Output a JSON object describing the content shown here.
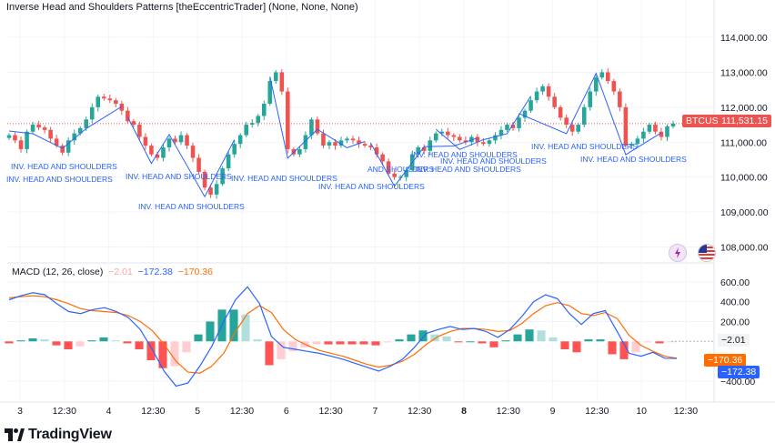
{
  "header": {
    "title": "Inverse Head and Shoulders Patterns [theEccentricTrader] (None, None, None)"
  },
  "macd_header": {
    "label": "MACD (12, 26, close)",
    "hist": "−2.01",
    "macd": "−172.38",
    "signal": "−170.36"
  },
  "badges": {
    "symbol": "BTCUSD",
    "price": "111,531.15",
    "hist": "−2.01",
    "signal": "−170.36",
    "macd": "−172.38"
  },
  "brand": {
    "name": "TradingView"
  },
  "icons": [
    "lightning-icon",
    "us-flag-icon",
    "tradingview-logo-icon"
  ],
  "colors": {
    "up": "#26a69a",
    "down": "#ef5350",
    "macd": "#2962ff",
    "signal": "#ff6d00",
    "hist_up_strong": "#26a69a",
    "hist_up_weak": "#b2dfdb",
    "hist_down_strong": "#ff5252",
    "hist_down_weak": "#ffcdd2",
    "pattern": "#2962ff",
    "price_line": "#ef5350"
  },
  "chart_data": [
    {
      "type": "candlestick",
      "title": "Inverse Head and Shoulders Patterns [theEccentricTrader] (None, None, None)",
      "symbol": "BTCUSD",
      "last_price": 111531.15,
      "ylim": [
        107700,
        114600
      ],
      "y_ticks": [
        108000,
        109000,
        110000,
        111000,
        112000,
        113000,
        114000
      ],
      "y_tick_labels": [
        "108,000.00",
        "109,000.00",
        "110,000.00",
        "111,000.00",
        "112,000.00",
        "113,000.00",
        "114,000.00"
      ],
      "x_tick_labels": [
        "3",
        "12:30",
        "4",
        "12:30",
        "5",
        "12:30",
        "6",
        "12:30",
        "7",
        "12:30",
        "8",
        "12:30",
        "9",
        "12:30",
        "10",
        "12:30"
      ],
      "close": [
        111200,
        111050,
        110800,
        111300,
        111500,
        111420,
        111350,
        111100,
        110900,
        110700,
        111050,
        111250,
        111400,
        111650,
        112000,
        112300,
        112250,
        112200,
        112100,
        111900,
        111600,
        111500,
        111150,
        110900,
        110650,
        110550,
        110850,
        111100,
        111000,
        111200,
        110900,
        110550,
        110150,
        109700,
        109500,
        109800,
        110250,
        110650,
        110950,
        111200,
        111500,
        111550,
        111750,
        112100,
        112750,
        113000,
        112450,
        110800,
        110650,
        110800,
        111200,
        111650,
        111250,
        110900,
        111000,
        110900,
        111050,
        111100,
        111050,
        110950,
        110900,
        110850,
        110650,
        110450,
        110100,
        110000,
        110000,
        110200,
        110650,
        110850,
        110750,
        111050,
        111250,
        111300,
        111200,
        111150,
        111050,
        111000,
        111150,
        111000,
        110950,
        111050,
        111200,
        111350,
        111500,
        111400,
        111700,
        111900,
        112200,
        112450,
        112600,
        112300,
        112000,
        111700,
        111500,
        111300,
        111500,
        112000,
        112450,
        112850,
        113000,
        112750,
        112450,
        112000,
        110900,
        110950,
        111100,
        111300,
        111500,
        111300,
        111150,
        111450,
        111531
      ],
      "signals": [
        {
          "label": "INV. HEAD AND SHOULDERS"
        },
        {
          "label": "INV. HEAD AND SHOULDERS"
        },
        {
          "label": "INV. HEAD AND SHOULDERS"
        },
        {
          "label": "INV. HEAD AND SHOULDERS"
        },
        {
          "label": "INV. HEAD AND SHOULDERS"
        },
        {
          "label": "INV. HEAD AND SHOULDERS"
        },
        {
          "label": "INV. HEAD AND SHOULDERS"
        },
        {
          "label": "INV. HEAD AND SHOULDERS"
        },
        {
          "label": "INV. HEAD AND SHOULDERS"
        },
        {
          "label": "INV. HEAD AND SHOULDERS"
        },
        {
          "label": "INV. HEAD AND SHOULDERS"
        },
        {
          "label": "AND SHOULDERS"
        }
      ]
    },
    {
      "type": "line",
      "title": "MACD (12, 26, close)",
      "ylim": [
        -520,
        690
      ],
      "y_ticks": [
        -400,
        200,
        400,
        600
      ],
      "y_tick_labels": [
        "−400.00",
        "200.00",
        "400.00",
        "600.00"
      ],
      "series": [
        {
          "name": "MACD",
          "values": [
            420,
            460,
            490,
            470,
            380,
            300,
            280,
            320,
            340,
            300,
            240,
            120,
            -80,
            -300,
            -450,
            -420,
            -250,
            -50,
            200,
            420,
            550,
            380,
            50,
            -60,
            -80,
            -100,
            -120,
            -150,
            -180,
            -220,
            -260,
            -300,
            -250,
            -180,
            -60,
            80,
            120,
            150,
            120,
            130,
            100,
            40,
            120,
            250,
            400,
            470,
            430,
            280,
            170,
            280,
            310,
            100,
            -120,
            -150,
            -110,
            -170,
            -172
          ]
        },
        {
          "name": "Signal",
          "values": [
            440,
            450,
            460,
            450,
            420,
            380,
            330,
            310,
            300,
            290,
            260,
            200,
            110,
            -30,
            -200,
            -310,
            -320,
            -250,
            -120,
            100,
            280,
            360,
            290,
            120,
            20,
            -40,
            -90,
            -120,
            -150,
            -190,
            -230,
            -260,
            -240,
            -200,
            -130,
            -30,
            50,
            100,
            130,
            130,
            120,
            100,
            110,
            180,
            280,
            360,
            390,
            360,
            280,
            260,
            290,
            230,
            60,
            -40,
            -100,
            -150,
            -170
          ]
        },
        {
          "name": "Histogram",
          "values": [
            -20,
            10,
            30,
            20,
            -40,
            -80,
            -50,
            10,
            40,
            10,
            -20,
            -80,
            -190,
            -270,
            -250,
            -110,
            70,
            200,
            320,
            320,
            270,
            20,
            -240,
            -180,
            -100,
            -60,
            -30,
            -30,
            -30,
            -30,
            -30,
            -40,
            -10,
            20,
            70,
            110,
            70,
            50,
            -10,
            0,
            -20,
            -60,
            10,
            70,
            120,
            110,
            40,
            -80,
            -110,
            20,
            20,
            -130,
            -180,
            -110,
            -10,
            -20,
            -2
          ]
        }
      ]
    }
  ],
  "x_axis_ticks": [
    "3",
    "12:30",
    "4",
    "12:30",
    "5",
    "12:30",
    "6",
    "12:30",
    "7",
    "12:30",
    "8",
    "12:30",
    "9",
    "12:30",
    "10",
    "12:30"
  ]
}
